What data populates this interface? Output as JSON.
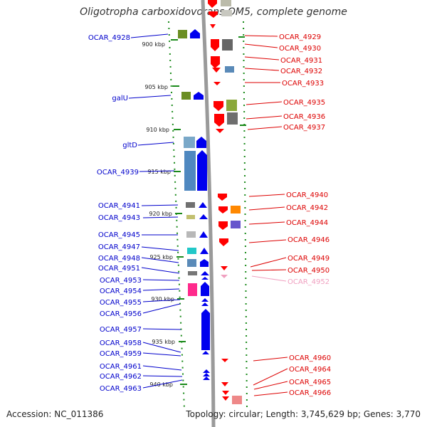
{
  "title": "Oligotropha carboxidovorans OM5, complete genome",
  "accession_text": "Accession: NC_011386",
  "summary_text": "Topology: circular; Length: 3,745,629 bp; Genes: 3,770",
  "colors": {
    "forward_label": "#0000cc",
    "reverse_label": "#dd0000",
    "pseudo_label": "#f0a0c0",
    "backbone": "#9a9a9a",
    "scale_dots": "#1a8a1a"
  },
  "scale_labels": [
    "900 kbp",
    "905 kbp",
    "910 kbp",
    "915 kbp",
    "920 kbp",
    "925 kbp",
    "930 kbp",
    "935 kbp",
    "940 kbp"
  ],
  "forward_genes": [
    {
      "label": "OCAR_4928"
    },
    {
      "label": "galU"
    },
    {
      "label": "gltD"
    },
    {
      "label": "OCAR_4939"
    },
    {
      "label": "OCAR_4941"
    },
    {
      "label": "OCAR_4943"
    },
    {
      "label": "OCAR_4945"
    },
    {
      "label": "OCAR_4947"
    },
    {
      "label": "OCAR_4948"
    },
    {
      "label": "OCAR_4951"
    },
    {
      "label": "OCAR_4953"
    },
    {
      "label": "OCAR_4954"
    },
    {
      "label": "OCAR_4955"
    },
    {
      "label": "OCAR_4956"
    },
    {
      "label": "OCAR_4957"
    },
    {
      "label": "OCAR_4958"
    },
    {
      "label": "OCAR_4959"
    },
    {
      "label": "OCAR_4961"
    },
    {
      "label": "OCAR_4962"
    },
    {
      "label": "OCAR_4963"
    }
  ],
  "reverse_genes": [
    {
      "label": "OCAR_4929"
    },
    {
      "label": "OCAR_4930"
    },
    {
      "label": "OCAR_4931"
    },
    {
      "label": "OCAR_4932"
    },
    {
      "label": "OCAR_4933"
    },
    {
      "label": "OCAR_4935"
    },
    {
      "label": "OCAR_4936"
    },
    {
      "label": "OCAR_4937"
    },
    {
      "label": "OCAR_4940"
    },
    {
      "label": "OCAR_4942"
    },
    {
      "label": "OCAR_4944"
    },
    {
      "label": "OCAR_4946"
    },
    {
      "label": "OCAR_4949"
    },
    {
      "label": "OCAR_4950"
    },
    {
      "label": "OCAR_4952",
      "pseudo": true
    },
    {
      "label": "OCAR_4960"
    },
    {
      "label": "OCAR_4964"
    },
    {
      "label": "OCAR_4965"
    },
    {
      "label": "OCAR_4966"
    }
  ]
}
